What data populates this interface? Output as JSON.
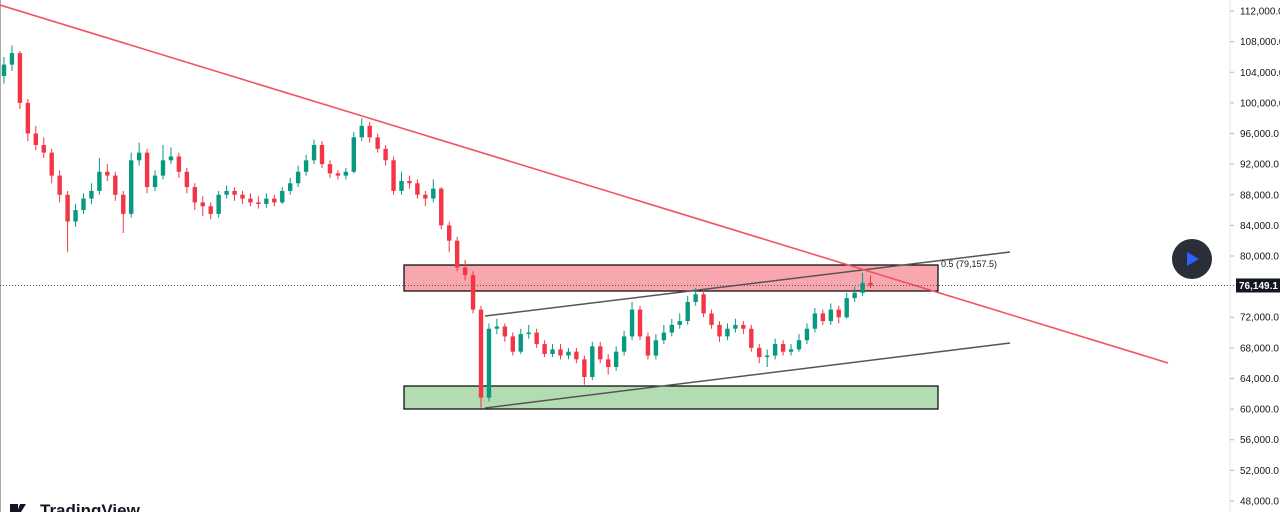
{
  "chart_data": {
    "type": "candlestick",
    "ylim": [
      46563,
      113437
    ],
    "yticks": [
      {
        "value": 112000,
        "label": "112,000.0"
      },
      {
        "value": 108000,
        "label": "108,000.0"
      },
      {
        "value": 104000,
        "label": "104,000.0"
      },
      {
        "value": 100000,
        "label": "100,000.0"
      },
      {
        "value": 96000,
        "label": "96,000.0"
      },
      {
        "value": 92000,
        "label": "92,000.0"
      },
      {
        "value": 88000,
        "label": "88,000.0"
      },
      {
        "value": 84000,
        "label": "84,000.0"
      },
      {
        "value": 80000,
        "label": "80,000.0"
      },
      {
        "value": 72000,
        "label": "72,000.0"
      },
      {
        "value": 68000,
        "label": "68,000.0"
      },
      {
        "value": 64000,
        "label": "64,000.0"
      },
      {
        "value": 60000,
        "label": "60,000.0"
      },
      {
        "value": 56000,
        "label": "56,000.0"
      },
      {
        "value": 52000,
        "label": "52,000.0"
      },
      {
        "value": 48000,
        "label": "48,000.0"
      }
    ],
    "last_price": {
      "value": 76149.1,
      "label": "76,149.1"
    },
    "annotation": "0.5 (79,157.5)",
    "logo": "TradingView",
    "up_color": "#089981",
    "down_color": "#f23645",
    "candles": [
      [
        103500,
        106000,
        102500,
        105000
      ],
      [
        105000,
        107500,
        104200,
        106500
      ],
      [
        106500,
        106800,
        99200,
        100000
      ],
      [
        100000,
        100500,
        95000,
        96000
      ],
      [
        96000,
        97000,
        93800,
        94500
      ],
      [
        94500,
        95500,
        92800,
        93500
      ],
      [
        93500,
        94000,
        89500,
        90500
      ],
      [
        90500,
        91200,
        87000,
        88000
      ],
      [
        88000,
        88500,
        80500,
        84500
      ],
      [
        84500,
        86800,
        83800,
        86000
      ],
      [
        86000,
        88200,
        85500,
        87500
      ],
      [
        87500,
        89500,
        86800,
        88500
      ],
      [
        88500,
        92800,
        88000,
        91000
      ],
      [
        91000,
        92000,
        89800,
        90500
      ],
      [
        90500,
        91000,
        87200,
        88000
      ],
      [
        88000,
        88500,
        83000,
        85500
      ],
      [
        85500,
        93500,
        85000,
        92500
      ],
      [
        92500,
        94800,
        91800,
        93500
      ],
      [
        93500,
        94000,
        88200,
        89000
      ],
      [
        89000,
        91200,
        88500,
        90500
      ],
      [
        90500,
        94500,
        90000,
        92500
      ],
      [
        92500,
        94200,
        92000,
        93000
      ],
      [
        93000,
        93500,
        90200,
        91000
      ],
      [
        91000,
        91500,
        88200,
        89000
      ],
      [
        89000,
        89500,
        86000,
        87000
      ],
      [
        87000,
        87800,
        85200,
        86500
      ],
      [
        86500,
        87000,
        84800,
        85500
      ],
      [
        85500,
        88500,
        85000,
        88000
      ],
      [
        88000,
        89200,
        87500,
        88500
      ],
      [
        88500,
        89000,
        87200,
        88000
      ],
      [
        88000,
        88500,
        86800,
        87500
      ],
      [
        87500,
        88200,
        86500,
        87000
      ],
      [
        87000,
        87800,
        86200,
        86800
      ],
      [
        86800,
        88200,
        86300,
        87500
      ],
      [
        87500,
        88000,
        86500,
        87000
      ],
      [
        87000,
        89000,
        86800,
        88500
      ],
      [
        88500,
        90200,
        88000,
        89500
      ],
      [
        89500,
        91800,
        89000,
        91000
      ],
      [
        91000,
        93200,
        90500,
        92500
      ],
      [
        92500,
        95200,
        92000,
        94500
      ],
      [
        94500,
        95000,
        91500,
        92000
      ],
      [
        92000,
        92500,
        90200,
        90800
      ],
      [
        90800,
        91200,
        90000,
        90500
      ],
      [
        90500,
        91500,
        90000,
        91000
      ],
      [
        91000,
        96200,
        90800,
        95500
      ],
      [
        95500,
        98000,
        95000,
        97000
      ],
      [
        97000,
        97500,
        94800,
        95500
      ],
      [
        95500,
        96000,
        93500,
        94000
      ],
      [
        94000,
        94500,
        91800,
        92500
      ],
      [
        92500,
        93000,
        88000,
        88500
      ],
      [
        88500,
        91000,
        88000,
        89800
      ],
      [
        89800,
        90500,
        88800,
        89500
      ],
      [
        89500,
        90000,
        87500,
        88000
      ],
      [
        88000,
        88500,
        86500,
        87500
      ],
      [
        87500,
        90000,
        87000,
        88800
      ],
      [
        88800,
        89000,
        83500,
        84000
      ],
      [
        84000,
        84500,
        80500,
        82000
      ],
      [
        82000,
        82500,
        78000,
        78500
      ],
      [
        78500,
        79500,
        76800,
        77500
      ],
      [
        77500,
        78000,
        72500,
        73000
      ],
      [
        73000,
        73500,
        60200,
        61500
      ],
      [
        61500,
        71200,
        61000,
        70500
      ],
      [
        70500,
        71800,
        69800,
        70800
      ],
      [
        70800,
        71200,
        68800,
        69500
      ],
      [
        69500,
        70000,
        67000,
        67500
      ],
      [
        67500,
        70500,
        67200,
        69800
      ],
      [
        69800,
        71000,
        69200,
        70000
      ],
      [
        70000,
        70500,
        68000,
        68500
      ],
      [
        68500,
        69000,
        66800,
        67200
      ],
      [
        67200,
        68500,
        66800,
        67800
      ],
      [
        67800,
        68500,
        66500,
        67000
      ],
      [
        67000,
        68000,
        66500,
        67500
      ],
      [
        67500,
        68000,
        66000,
        66500
      ],
      [
        66500,
        67000,
        63200,
        64200
      ],
      [
        64200,
        68800,
        63800,
        68200
      ],
      [
        68200,
        68800,
        66000,
        66500
      ],
      [
        66500,
        67200,
        64500,
        65500
      ],
      [
        65500,
        68200,
        65000,
        67500
      ],
      [
        67500,
        70200,
        67000,
        69500
      ],
      [
        69500,
        74000,
        69000,
        73000
      ],
      [
        73000,
        73500,
        69000,
        69500
      ],
      [
        69500,
        70000,
        66500,
        67000
      ],
      [
        67000,
        69800,
        66500,
        69000
      ],
      [
        69000,
        71000,
        68500,
        70000
      ],
      [
        70000,
        71800,
        69500,
        71000
      ],
      [
        71000,
        72500,
        70500,
        71500
      ],
      [
        71500,
        74800,
        71000,
        74000
      ],
      [
        74000,
        75800,
        73500,
        75000
      ],
      [
        75000,
        75500,
        72000,
        72500
      ],
      [
        72500,
        73000,
        70500,
        71000
      ],
      [
        71000,
        71500,
        68800,
        69500
      ],
      [
        69500,
        71200,
        69000,
        70500
      ],
      [
        70500,
        71800,
        70000,
        71000
      ],
      [
        71000,
        71500,
        69800,
        70500
      ],
      [
        70500,
        71000,
        67500,
        68000
      ],
      [
        68000,
        68500,
        66000,
        66800
      ],
      [
        66800,
        67800,
        65500,
        67000
      ],
      [
        67000,
        69200,
        66500,
        68500
      ],
      [
        68500,
        69000,
        67000,
        67500
      ],
      [
        67500,
        68500,
        67000,
        67800
      ],
      [
        67800,
        69800,
        67500,
        69000
      ],
      [
        69000,
        71200,
        68500,
        70500
      ],
      [
        70500,
        73200,
        70000,
        72500
      ],
      [
        72500,
        73000,
        71000,
        71500
      ],
      [
        71500,
        73800,
        71000,
        73000
      ],
      [
        73000,
        73500,
        71200,
        72000
      ],
      [
        72000,
        75200,
        71800,
        74500
      ],
      [
        74500,
        76000,
        74000,
        75200
      ],
      [
        75200,
        77800,
        74800,
        76500
      ],
      [
        76500,
        77500,
        75800,
        76149.1
      ]
    ]
  }
}
